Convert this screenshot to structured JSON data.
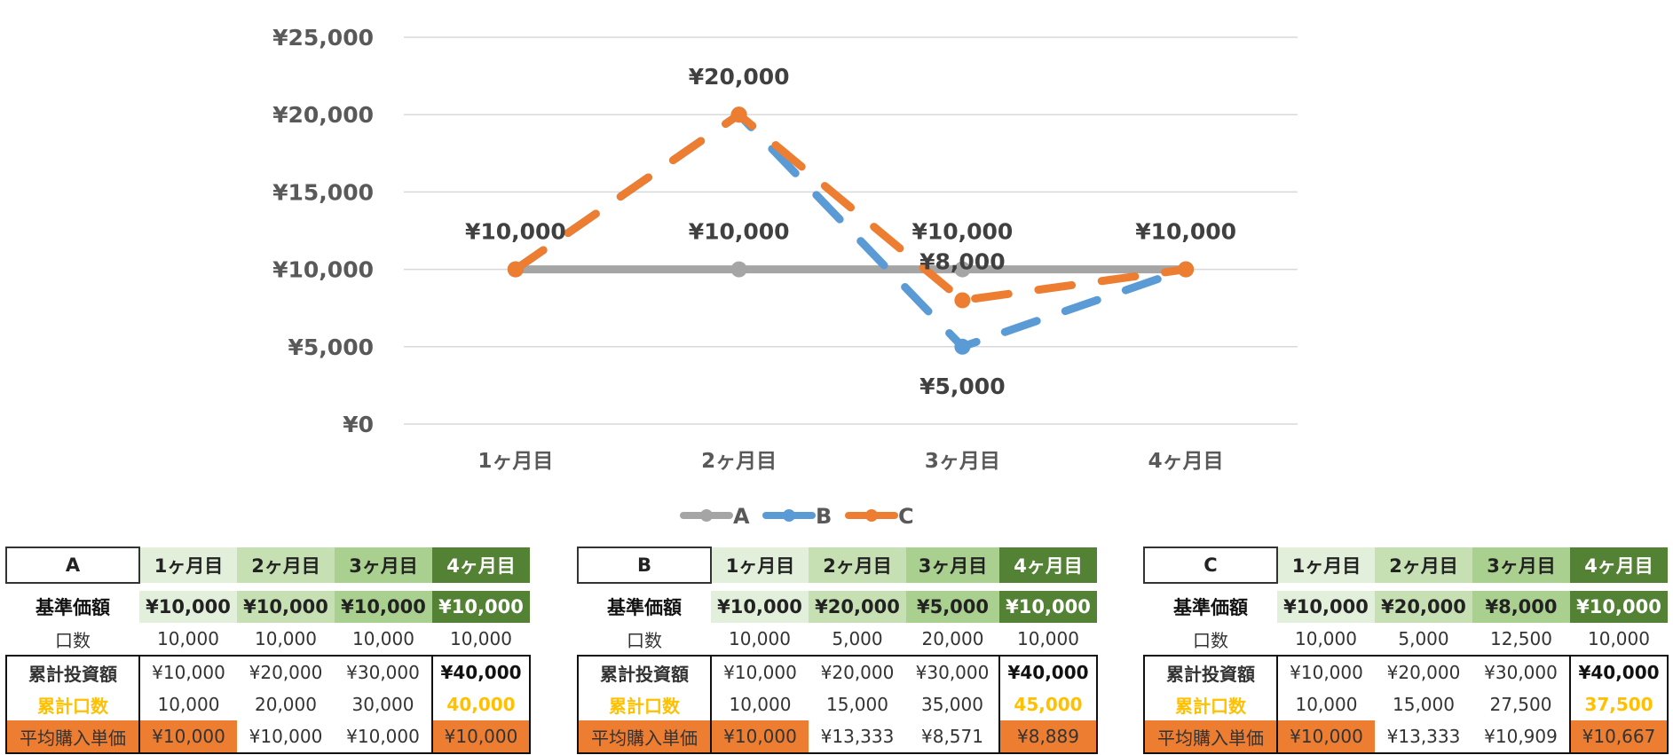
{
  "chart_data": {
    "type": "line",
    "categories": [
      "1ヶ月目",
      "2ヶ月目",
      "3ヶ月目",
      "4ヶ月目"
    ],
    "ylim": [
      0,
      25000
    ],
    "yticks": [
      "¥0",
      "¥5,000",
      "¥10,000",
      "¥15,000",
      "¥20,000",
      "¥25,000"
    ],
    "ytick_values": [
      0,
      5000,
      10000,
      15000,
      20000,
      25000
    ],
    "grid": true,
    "legend": "bottom",
    "series": [
      {
        "name": "A",
        "color": "#a5a5a5",
        "dashed": false,
        "values": [
          10000,
          10000,
          10000,
          10000
        ],
        "labels": [
          "",
          "¥10,000",
          "¥10,000",
          ""
        ]
      },
      {
        "name": "B",
        "color": "#5b9bd5",
        "dashed": true,
        "values": [
          10000,
          20000,
          5000,
          10000
        ],
        "labels": [
          "",
          "",
          "¥5,000",
          ""
        ]
      },
      {
        "name": "C",
        "color": "#ed7d31",
        "dashed": true,
        "values": [
          10000,
          20000,
          8000,
          10000
        ],
        "labels": [
          "¥10,000",
          "¥20,000",
          "¥8,000",
          "¥10,000"
        ]
      }
    ]
  },
  "tables": [
    {
      "title": "A",
      "months": [
        "1ヶ月目",
        "2ヶ月目",
        "3ヶ月目",
        "4ヶ月目"
      ],
      "row_labels": [
        "基準価額",
        "口数",
        "累計投資額",
        "累計口数",
        "平均購入単価"
      ],
      "kijun": [
        "¥10,000",
        "¥10,000",
        "¥10,000",
        "¥10,000"
      ],
      "kuchi": [
        "10,000",
        "10,000",
        "10,000",
        "10,000"
      ],
      "ruikei": [
        "¥10,000",
        "¥20,000",
        "¥30,000",
        "¥40,000"
      ],
      "ruiku": [
        "10,000",
        "20,000",
        "30,000",
        "40,000"
      ],
      "avg": [
        "¥10,000",
        "¥10,000",
        "¥10,000",
        "¥10,000"
      ]
    },
    {
      "title": "B",
      "months": [
        "1ヶ月目",
        "2ヶ月目",
        "3ヶ月目",
        "4ヶ月目"
      ],
      "row_labels": [
        "基準価額",
        "口数",
        "累計投資額",
        "累計口数",
        "平均購入単価"
      ],
      "kijun": [
        "¥10,000",
        "¥20,000",
        "¥5,000",
        "¥10,000"
      ],
      "kuchi": [
        "10,000",
        "5,000",
        "20,000",
        "10,000"
      ],
      "ruikei": [
        "¥10,000",
        "¥20,000",
        "¥30,000",
        "¥40,000"
      ],
      "ruiku": [
        "10,000",
        "15,000",
        "35,000",
        "45,000"
      ],
      "avg": [
        "¥10,000",
        "¥13,333",
        "¥8,571",
        "¥8,889"
      ]
    },
    {
      "title": "C",
      "months": [
        "1ヶ月目",
        "2ヶ月目",
        "3ヶ月目",
        "4ヶ月目"
      ],
      "row_labels": [
        "基準価額",
        "口数",
        "累計投資額",
        "累計口数",
        "平均購入単価"
      ],
      "kijun": [
        "¥10,000",
        "¥20,000",
        "¥8,000",
        "¥10,000"
      ],
      "kuchi": [
        "10,000",
        "5,000",
        "12,500",
        "10,000"
      ],
      "ruikei": [
        "¥10,000",
        "¥20,000",
        "¥30,000",
        "¥40,000"
      ],
      "ruiku": [
        "10,000",
        "15,000",
        "27,500",
        "37,500"
      ],
      "avg": [
        "¥10,000",
        "¥13,333",
        "¥10,909",
        "¥10,667"
      ]
    }
  ]
}
